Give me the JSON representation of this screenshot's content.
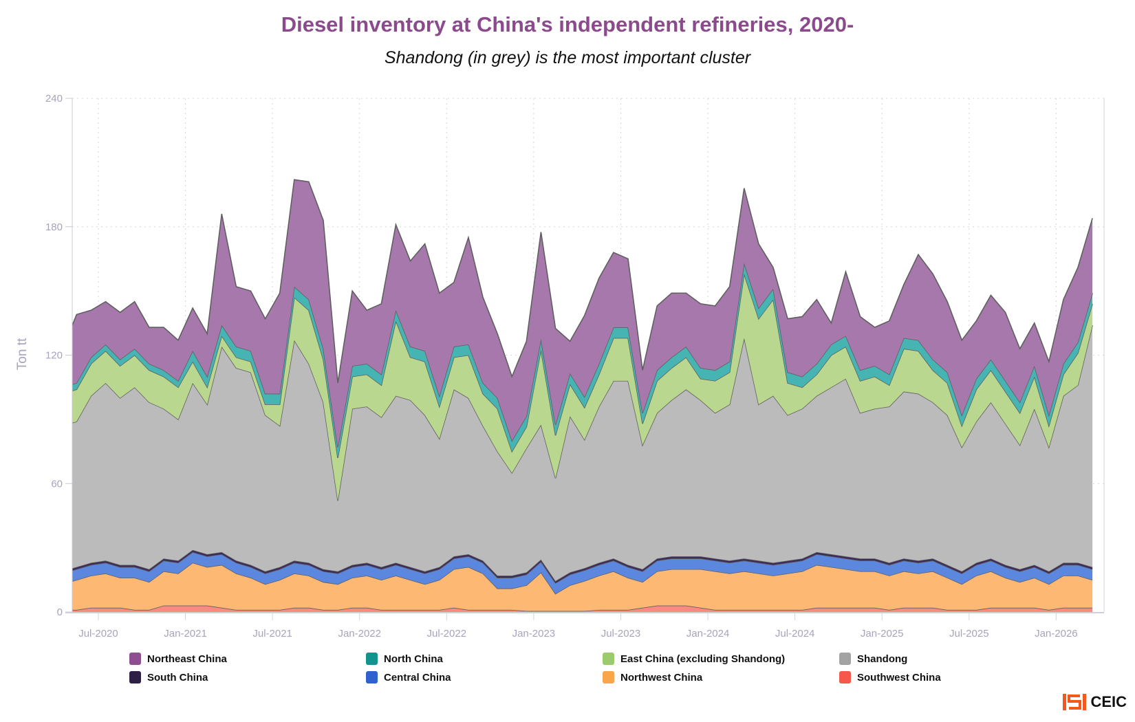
{
  "chart_data": {
    "type": "area",
    "stacked": true,
    "title": "Diesel inventory at China's independent refineries, 2020-",
    "subtitle": "Shandong (in grey) is the most important cluster",
    "ylabel": "Ton tt",
    "ylim": [
      0,
      240
    ],
    "yticks": [
      0,
      60,
      120,
      180,
      240
    ],
    "xticks": [
      "Jul-2020",
      "Jan-2021",
      "Jul-2021",
      "Jan-2022",
      "Jul-2022",
      "Jan-2023",
      "Jul-2023",
      "Jan-2024",
      "Jul-2024",
      "Jan-2025",
      "Jul-2025",
      "Jan-2026"
    ],
    "grid": true,
    "legend_position": "bottom",
    "x": [
      "Apr-2020",
      "May-2020",
      "Jun-2020",
      "Jul-2020",
      "Aug-2020",
      "Sep-2020",
      "Oct-2020",
      "Nov-2020",
      "Dec-2020",
      "Jan-2021",
      "Feb-2021",
      "Mar-2021",
      "Apr-2021",
      "May-2021",
      "Jun-2021",
      "Jul-2021",
      "Aug-2021",
      "Sep-2021",
      "Oct-2021",
      "Nov-2021",
      "Dec-2021",
      "Jan-2022",
      "Feb-2022",
      "Mar-2022",
      "Apr-2022",
      "May-2022",
      "Jun-2022",
      "Jul-2022",
      "Aug-2022",
      "Sep-2022",
      "Oct-2022",
      "Nov-2022",
      "Dec-2022",
      "Jan-2023",
      "Feb-2023",
      "Mar-2023",
      "Apr-2023",
      "May-2023",
      "Jun-2023",
      "Jul-2023",
      "Aug-2023",
      "Sep-2023",
      "Oct-2023",
      "Nov-2023",
      "Dec-2023",
      "Jan-2024",
      "Feb-2024",
      "Mar-2024",
      "Apr-2024",
      "May-2024",
      "Jun-2024",
      "Jul-2024",
      "Aug-2024",
      "Sep-2024",
      "Oct-2024",
      "Nov-2024",
      "Dec-2024",
      "Jan-2025",
      "Feb-2025",
      "Mar-2025",
      "Apr-2025",
      "May-2025",
      "Jun-2025",
      "Jul-2025",
      "Aug-2025",
      "Sep-2025",
      "Oct-2025",
      "Nov-2025",
      "Dec-2025",
      "Jan-2026",
      "Feb-2026",
      "Mar-2026"
    ],
    "series": [
      {
        "name": "Southwest China",
        "color": "#f6584b",
        "fill": "#fa8a82",
        "values": [
          1,
          1,
          2,
          2,
          2,
          1,
          1,
          3,
          3,
          3,
          3,
          2,
          1,
          1,
          1,
          1,
          2,
          2,
          1,
          1,
          2,
          2,
          1,
          1,
          1,
          1,
          1,
          2,
          1,
          1,
          1,
          1,
          0.5,
          0.5,
          0.5,
          0.5,
          0.5,
          1,
          1,
          1,
          2,
          3,
          3,
          3,
          2,
          1,
          1,
          1,
          1,
          1,
          1,
          1,
          2,
          2,
          2,
          2,
          2,
          1,
          2,
          2,
          2,
          1,
          1,
          1,
          2,
          2,
          2,
          2,
          1,
          2,
          2,
          2
        ]
      },
      {
        "name": "Northwest China",
        "color": "#f9a54a",
        "fill": "#fdb974",
        "values": [
          12,
          14,
          15,
          16,
          14,
          15,
          13,
          16,
          15,
          20,
          18,
          20,
          17,
          15,
          12,
          14,
          16,
          15,
          13,
          12,
          14,
          15,
          14,
          16,
          14,
          12,
          14,
          18,
          20,
          17,
          10,
          10,
          12,
          18,
          8,
          12,
          14,
          16,
          18,
          15,
          12,
          16,
          17,
          17,
          18,
          18,
          17,
          18,
          17,
          16,
          17,
          18,
          20,
          19,
          18,
          17,
          17,
          16,
          17,
          16,
          17,
          15,
          12,
          16,
          17,
          14,
          12,
          14,
          12,
          15,
          15,
          13
        ]
      },
      {
        "name": "Central China",
        "color": "#2f62cf",
        "fill": "#5b87de",
        "values": [
          5,
          5,
          5,
          5,
          5,
          5,
          5,
          5,
          5,
          5,
          5,
          5,
          5,
          5,
          5,
          5,
          5,
          5,
          5,
          5,
          5,
          5,
          5,
          5,
          5,
          5,
          5,
          5,
          5,
          5,
          5,
          5,
          5,
          5,
          5,
          5,
          5,
          5,
          5,
          5,
          5,
          5,
          5,
          5,
          5,
          5,
          5,
          5,
          5,
          5,
          5,
          5,
          5,
          5,
          5,
          5,
          5,
          5,
          5,
          5,
          5,
          5,
          5,
          5,
          5,
          5,
          5,
          5,
          5,
          5,
          5,
          5
        ]
      },
      {
        "name": "South China",
        "color": "#2e1f45",
        "fill": "#3d2c5a",
        "values": [
          1,
          1,
          1,
          1,
          1,
          1,
          1,
          1,
          1,
          1,
          1,
          1,
          1,
          1,
          1,
          1,
          1,
          1,
          1,
          1,
          1,
          1,
          1,
          1,
          1,
          1,
          1,
          1,
          1,
          1,
          1,
          1,
          1,
          1,
          1,
          1,
          1,
          1,
          1,
          1,
          1,
          1,
          1,
          1,
          1,
          1,
          1,
          1,
          1,
          1,
          1,
          1,
          1,
          1,
          1,
          1,
          1,
          1,
          1,
          1,
          1,
          1,
          1,
          1,
          1,
          1,
          1,
          1,
          1,
          1,
          1,
          1
        ]
      },
      {
        "name": "Shandong",
        "color": "#a3a3a3",
        "fill": "#bcbbbb",
        "values": [
          68,
          68,
          78,
          83,
          78,
          83,
          78,
          70,
          66,
          78,
          70,
          96,
          90,
          90,
          73,
          66,
          103,
          93,
          78,
          33,
          73,
          73,
          70,
          78,
          78,
          73,
          60,
          78,
          73,
          63,
          58,
          48,
          58,
          63,
          48,
          73,
          60,
          73,
          83,
          86,
          58,
          68,
          73,
          78,
          73,
          68,
          73,
          103,
          73,
          78,
          68,
          70,
          73,
          78,
          83,
          68,
          70,
          73,
          78,
          78,
          73,
          70,
          58,
          66,
          73,
          66,
          58,
          73,
          58,
          78,
          83,
          113
        ]
      },
      {
        "name": "East China (excluding Shandong)",
        "color": "#9ccb6d",
        "fill": "#b9d78e",
        "values": [
          15,
          15,
          15,
          15,
          15,
          15,
          15,
          15,
          15,
          10,
          8,
          5,
          5,
          5,
          5,
          10,
          20,
          25,
          20,
          20,
          15,
          15,
          15,
          35,
          20,
          25,
          15,
          15,
          20,
          15,
          20,
          10,
          10,
          35,
          20,
          15,
          15,
          15,
          20,
          20,
          10,
          15,
          15,
          15,
          10,
          15,
          15,
          30,
          40,
          45,
          15,
          10,
          10,
          15,
          15,
          15,
          15,
          10,
          20,
          20,
          15,
          15,
          10,
          15,
          15,
          15,
          15,
          15,
          10,
          10,
          15,
          10
        ]
      },
      {
        "name": "North China",
        "color": "#13938e",
        "fill": "#45b4b2",
        "values": [
          3,
          3,
          3,
          3,
          3,
          3,
          3,
          3,
          3,
          5,
          5,
          5,
          5,
          5,
          5,
          5,
          5,
          5,
          5,
          5,
          5,
          5,
          5,
          5,
          5,
          5,
          5,
          5,
          5,
          5,
          5,
          5,
          5,
          5,
          5,
          5,
          5,
          5,
          5,
          5,
          5,
          5,
          5,
          5,
          5,
          5,
          5,
          5,
          5,
          5,
          5,
          5,
          5,
          5,
          5,
          5,
          5,
          5,
          5,
          5,
          5,
          5,
          5,
          5,
          5,
          5,
          5,
          5,
          5,
          5,
          5,
          5
        ]
      },
      {
        "name": "Northeast China",
        "color": "#8e4f91",
        "fill": "#a678ab",
        "values": [
          17,
          32,
          22,
          20,
          22,
          22,
          17,
          20,
          19,
          20,
          20,
          52,
          28,
          28,
          35,
          47,
          50,
          55,
          60,
          30,
          35,
          25,
          33,
          40,
          40,
          50,
          48,
          30,
          50,
          40,
          30,
          30,
          35,
          50,
          45,
          15,
          38,
          40,
          35,
          32,
          20,
          30,
          30,
          25,
          30,
          30,
          35,
          35,
          30,
          10,
          25,
          28,
          30,
          10,
          30,
          25,
          18,
          25,
          25,
          40,
          40,
          33,
          35,
          27,
          30,
          32,
          25,
          20,
          25,
          30,
          35,
          35
        ]
      }
    ],
    "legend_order": [
      "Northeast China",
      "North China",
      "East China (excluding Shandong)",
      "Shandong",
      "South China",
      "Central China",
      "Northwest China",
      "Southwest China"
    ]
  },
  "brand": {
    "logo_text": "CEIC",
    "logo_color": "#f25a1d"
  }
}
